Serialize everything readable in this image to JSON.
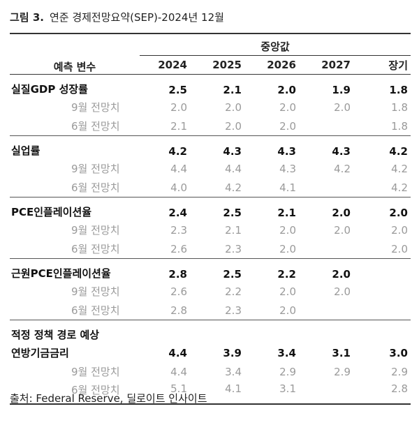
{
  "figure": {
    "label": "그림 3.",
    "title": "연준 경제전망요약(SEP)-2024년 12월"
  },
  "header": {
    "row_head": "예측 변수",
    "median": "중앙값",
    "years": [
      "2024",
      "2025",
      "2026",
      "2027",
      "장기"
    ]
  },
  "groups": [
    {
      "name": "실질GDP 성장률",
      "values": [
        "2.5",
        "2.1",
        "2.0",
        "1.9",
        "1.8"
      ],
      "sub": [
        {
          "label": "9월 전망치",
          "values": [
            "2.0",
            "2.0",
            "2.0",
            "2.0",
            "1.8"
          ]
        },
        {
          "label": "6월 전망치",
          "values": [
            "2.1",
            "2.0",
            "2.0",
            "",
            "1.8"
          ]
        }
      ]
    },
    {
      "name": "실업률",
      "values": [
        "4.2",
        "4.3",
        "4.3",
        "4.3",
        "4.2"
      ],
      "sub": [
        {
          "label": "9월 전망치",
          "values": [
            "4.4",
            "4.4",
            "4.3",
            "4.2",
            "4.2"
          ]
        },
        {
          "label": "6월 전망치",
          "values": [
            "4.0",
            "4.2",
            "4.1",
            "",
            "4.2"
          ]
        }
      ]
    },
    {
      "name": "PCE인플레이션율",
      "values": [
        "2.4",
        "2.5",
        "2.1",
        "2.0",
        "2.0"
      ],
      "sub": [
        {
          "label": "9월 전망치",
          "values": [
            "2.3",
            "2.1",
            "2.0",
            "2.0",
            "2.0"
          ]
        },
        {
          "label": "6월 전망치",
          "values": [
            "2.6",
            "2.3",
            "2.0",
            "",
            "2.0"
          ]
        }
      ]
    },
    {
      "name": "근원PCE인플레이션율",
      "values": [
        "2.8",
        "2.5",
        "2.2",
        "2.0",
        ""
      ],
      "sub": [
        {
          "label": "9월 전망치",
          "values": [
            "2.6",
            "2.2",
            "2.0",
            "2.0",
            ""
          ]
        },
        {
          "label": "6월 전망치",
          "values": [
            "2.8",
            "2.3",
            "2.0",
            "",
            ""
          ]
        }
      ]
    },
    {
      "name_line1": "적정 정책 경로 예상",
      "name": "연방기금금리",
      "values": [
        "4.4",
        "3.9",
        "3.4",
        "3.1",
        "3.0"
      ],
      "sub": [
        {
          "label": "9월 전망치",
          "values": [
            "4.4",
            "3.4",
            "2.9",
            "2.9",
            "2.9"
          ]
        },
        {
          "label": "6월 전망치",
          "values": [
            "5.1",
            "4.1",
            "3.1",
            "",
            "2.8"
          ]
        }
      ]
    }
  ],
  "source": "출처: Federal Reserve, 딜로이트 인사이트"
}
